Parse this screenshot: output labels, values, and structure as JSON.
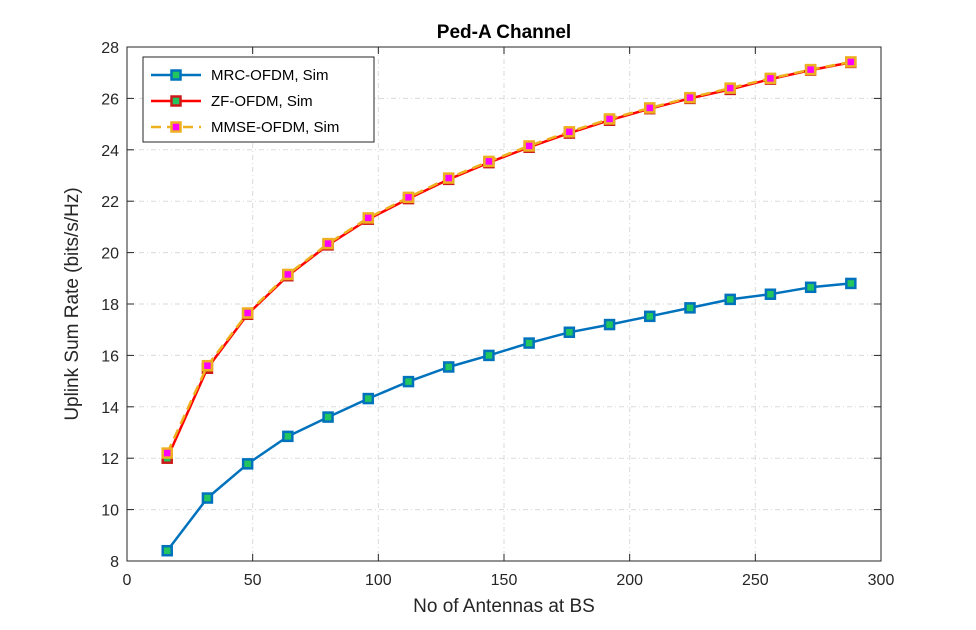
{
  "chart_data": {
    "type": "line",
    "title": "Ped-A Channel",
    "xlabel": "No of Antennas at BS",
    "ylabel": "Uplink Sum Rate (bits/s/Hz)",
    "xlim": [
      0,
      300
    ],
    "ylim": [
      8,
      28
    ],
    "xticks": [
      0,
      50,
      100,
      150,
      200,
      250,
      300
    ],
    "yticks": [
      8,
      10,
      12,
      14,
      16,
      18,
      20,
      22,
      24,
      26,
      28
    ],
    "grid": true,
    "legend_position": "top-left",
    "x": [
      16,
      32,
      48,
      64,
      80,
      96,
      112,
      128,
      144,
      160,
      176,
      192,
      208,
      224,
      240,
      256,
      272,
      288
    ],
    "series": [
      {
        "name": "MRC-OFDM, Sim",
        "line_color": "#0072BD",
        "marker_edge": "#0072BD",
        "marker_fill": "#22C55E",
        "dash": "solid",
        "values": [
          8.4,
          10.45,
          11.78,
          12.85,
          13.6,
          14.32,
          14.98,
          15.55,
          16.0,
          16.48,
          16.9,
          17.2,
          17.52,
          17.85,
          18.18,
          18.38,
          18.65,
          18.8
        ]
      },
      {
        "name": "ZF-OFDM, Sim",
        "line_color": "#FF0000",
        "marker_edge": "#CC1A1A",
        "marker_fill": "#22C55E",
        "dash": "solid",
        "values": [
          12.0,
          15.5,
          17.6,
          19.1,
          20.3,
          21.3,
          22.1,
          22.85,
          23.5,
          24.1,
          24.65,
          25.15,
          25.6,
          26.0,
          26.35,
          26.75,
          27.1,
          27.4
        ]
      },
      {
        "name": "MMSE-OFDM, Sim",
        "line_color": "#EDB120",
        "marker_edge": "#EDB120",
        "marker_fill": "#FF00FF",
        "dash": "dashed",
        "values": [
          12.2,
          15.6,
          17.65,
          19.15,
          20.35,
          21.35,
          22.15,
          22.9,
          23.55,
          24.15,
          24.7,
          25.2,
          25.63,
          26.03,
          26.4,
          26.78,
          27.12,
          27.42
        ]
      }
    ]
  }
}
